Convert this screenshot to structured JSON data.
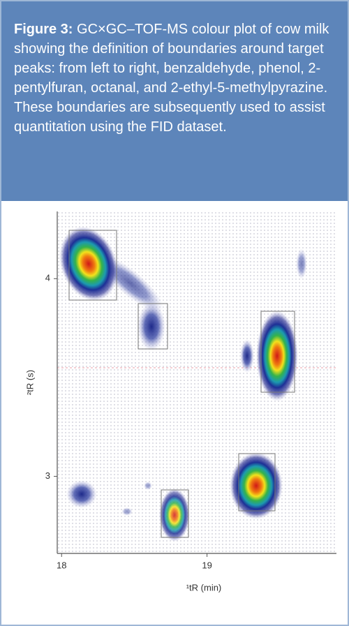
{
  "caption": {
    "label": "Figure 3:",
    "text": "GC×GC–TOF-MS colour plot of cow milk showing the definition of boundaries around target peaks: from left to right, benzaldehyde, phenol, 2-pentylfuran, octanal, and 2-ethyl-5-methylpyrazine. These boundaries are subsequently used to assist quantitation using the FID dataset."
  },
  "chart_data": {
    "type": "heatmap",
    "xlabel": "¹tR (min)",
    "ylabel": "²tR (s)",
    "xlim": [
      17.97,
      19.89
    ],
    "xticks": [
      18,
      19
    ],
    "ylim": [
      2.61,
      4.34
    ],
    "yticks": [
      3,
      4
    ]
  }
}
